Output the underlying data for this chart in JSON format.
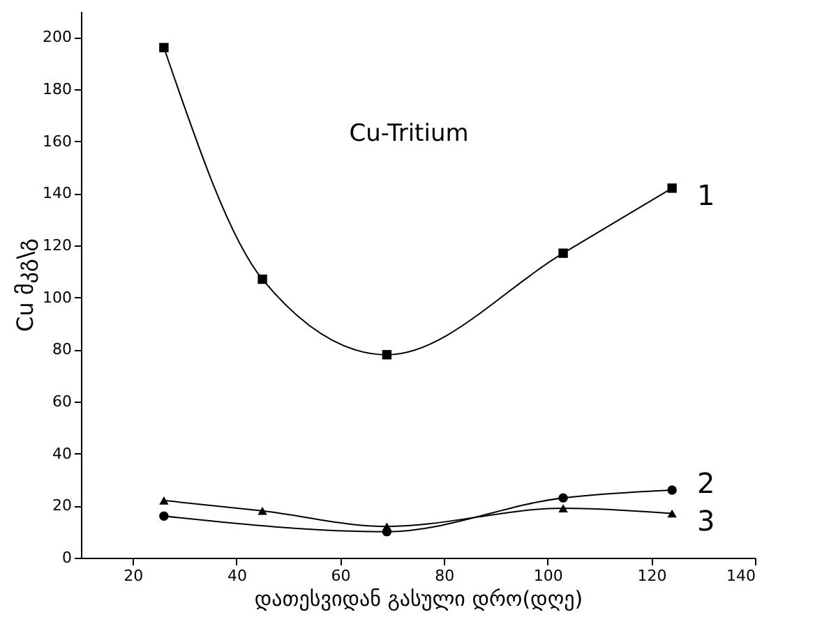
{
  "chart_data": {
    "type": "line",
    "xlabel": "დათესვიდან გასული დრო(დღე)",
    "ylabel": "Cu   მკგ\\გ",
    "annotations": [
      "Cu-Tritium"
    ],
    "xlim": [
      10,
      140
    ],
    "xticks": [
      20,
      40,
      60,
      80,
      100,
      120,
      140
    ],
    "ylim": [
      0,
      210
    ],
    "yticks": [
      0,
      20,
      40,
      60,
      80,
      100,
      120,
      140,
      160,
      180,
      200
    ],
    "grid": false,
    "line_style": "solid",
    "series": [
      {
        "name": "1",
        "color": "#000000",
        "marker": "square",
        "x": [
          26,
          45,
          69,
          103,
          124
        ],
        "values": [
          196,
          107,
          78,
          117,
          142
        ]
      },
      {
        "name": "2",
        "color": "#000000",
        "marker": "circle",
        "x": [
          26,
          69,
          103,
          124
        ],
        "values": [
          16,
          10,
          23,
          26
        ]
      },
      {
        "name": "3",
        "color": "#000000",
        "marker": "triangle",
        "x": [
          26,
          45,
          69,
          103,
          124
        ],
        "values": [
          22,
          18,
          12,
          19,
          17
        ]
      }
    ]
  }
}
